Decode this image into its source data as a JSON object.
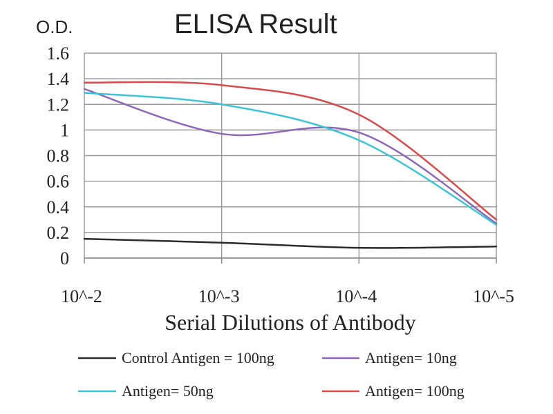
{
  "chart_data": {
    "type": "line",
    "title": "ELISA Result",
    "ylabel": "O.D.",
    "xlabel": "Serial Dilutions of Antibody",
    "categories": [
      "10^-2",
      "10^-3",
      "10^-4",
      "10^-5"
    ],
    "ylim": [
      0,
      1.6
    ],
    "yticks": [
      "0",
      "0.2",
      "0.4",
      "0.6",
      "0.8",
      "1",
      "1.2",
      "1.4",
      "1.6"
    ],
    "grid": true,
    "legend_position": "bottom",
    "series": [
      {
        "name": "Control Antigen = 100ng",
        "color": "#2a2a2a",
        "values": [
          0.15,
          0.12,
          0.08,
          0.09
        ]
      },
      {
        "name": "Antigen= 10ng",
        "color": "#8e68b8",
        "values": [
          1.32,
          0.97,
          0.98,
          0.27
        ]
      },
      {
        "name": "Antigen= 50ng",
        "color": "#3cc4d6",
        "values": [
          1.29,
          1.2,
          0.92,
          0.26
        ]
      },
      {
        "name": "Antigen= 100ng",
        "color": "#d94a4a",
        "values": [
          1.37,
          1.35,
          1.12,
          0.3
        ]
      }
    ]
  }
}
